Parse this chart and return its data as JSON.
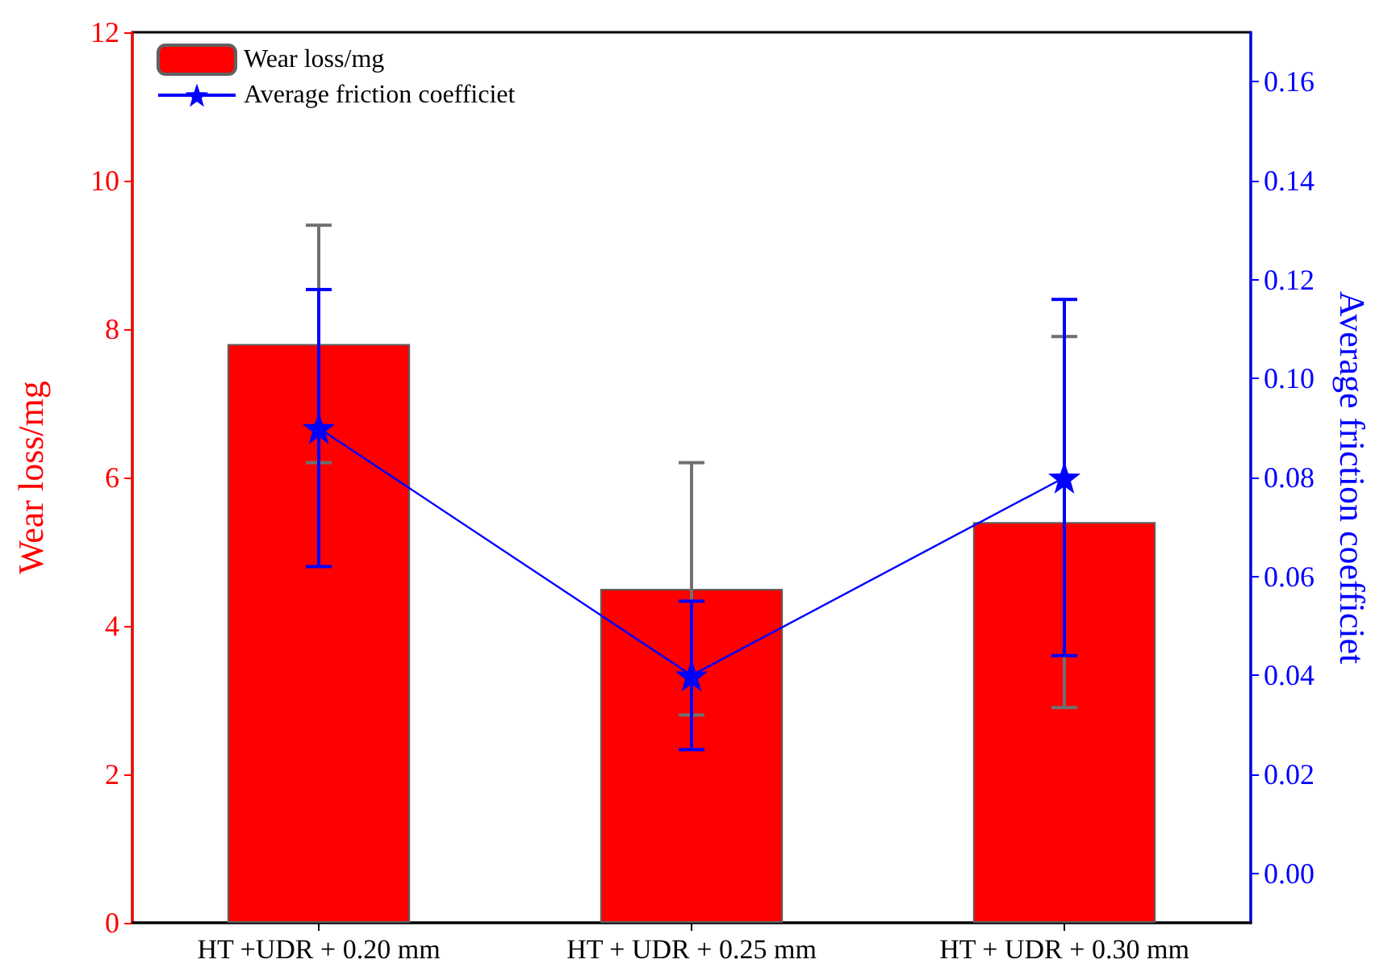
{
  "chart_data": {
    "type": "bar",
    "categories": [
      "HT +UDR + 0.20 mm",
      "HT + UDR + 0.25 mm",
      "HT + UDR + 0.30 mm"
    ],
    "series": [
      {
        "name": "Wear loss/mg",
        "color": "#ff0000",
        "values": [
          7.8,
          4.5,
          5.4
        ],
        "errors": [
          1.6,
          1.7,
          2.5
        ]
      },
      {
        "name": "Average friction coefficiet",
        "type": "line",
        "axis": "y2",
        "color": "#0000ff",
        "values": [
          0.09,
          0.04,
          0.08
        ],
        "errors": [
          0.028,
          0.015,
          0.036
        ]
      }
    ],
    "ylabel": "Wear loss/mg",
    "y2label": "Average friction coefficiet",
    "ylim": [
      0,
      12
    ],
    "yticks": [
      0,
      2,
      4,
      6,
      8,
      10,
      12
    ],
    "y2lim": [
      -0.01,
      0.17
    ],
    "y2ticks": [
      {
        "value": 0,
        "label": "0.00"
      },
      {
        "value": 0.02,
        "label": "0.02"
      },
      {
        "value": 0.04,
        "label": "0.04"
      },
      {
        "value": 0.06,
        "label": "0.06"
      },
      {
        "value": 0.08,
        "label": "0.08"
      },
      {
        "value": 0.1,
        "label": "0.10"
      },
      {
        "value": 0.12,
        "label": "0.12"
      },
      {
        "value": 0.14,
        "label": "0.14"
      },
      {
        "value": 0.16,
        "label": "0.16"
      }
    ],
    "marker": "star",
    "line_style": "solid",
    "legend": "top left",
    "grid": false
  }
}
